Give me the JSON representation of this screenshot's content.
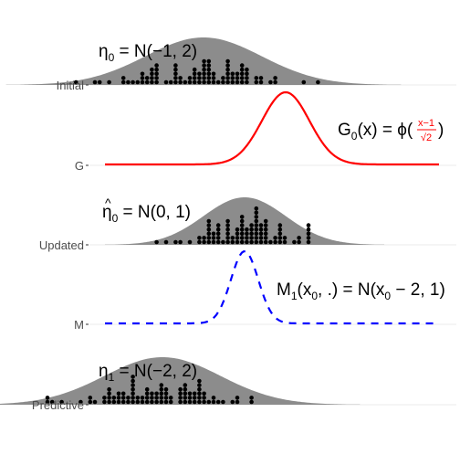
{
  "rows": [
    {
      "key": "initial",
      "label": "Initial",
      "type": "dots",
      "mean": -1,
      "variance": 2,
      "annotation": {
        "base": "η",
        "sub": "0",
        "rest": " = N(−1, 2)"
      }
    },
    {
      "key": "g",
      "label": "G",
      "type": "curve",
      "color": "#ff0000",
      "dash": false,
      "annotation": {
        "base": "G",
        "sub": "0",
        "rest": "(x) = ϕ(",
        "frac_num": "x−1",
        "frac_den": "√2",
        "close": ")"
      }
    },
    {
      "key": "updated",
      "label": "Updated",
      "type": "dots",
      "mean": 0,
      "variance": 1,
      "annotation": {
        "hat": "^",
        "base": "η",
        "sub": "0",
        "rest": " = N(0, 1)"
      }
    },
    {
      "key": "m",
      "label": "M",
      "type": "curve",
      "color": "#0000ff",
      "dash": true,
      "annotation": {
        "base": "M",
        "sub": "1",
        "rest": "(x",
        "sub2": "0",
        "rest2": ", .) = N(x",
        "sub3": "0",
        "rest3": " − 2, 1)"
      }
    },
    {
      "key": "predictive",
      "label": "Predictive",
      "type": "dots",
      "mean": -2,
      "variance": 2,
      "annotation": {
        "base": "η",
        "sub": "1",
        "rest": " = N(−2, 2)"
      }
    }
  ],
  "colors": {
    "density_fill": "#8c8c8c",
    "dots": "#000000",
    "gridline": "#ebebeb",
    "axis_text": "#4d4d4d"
  }
}
